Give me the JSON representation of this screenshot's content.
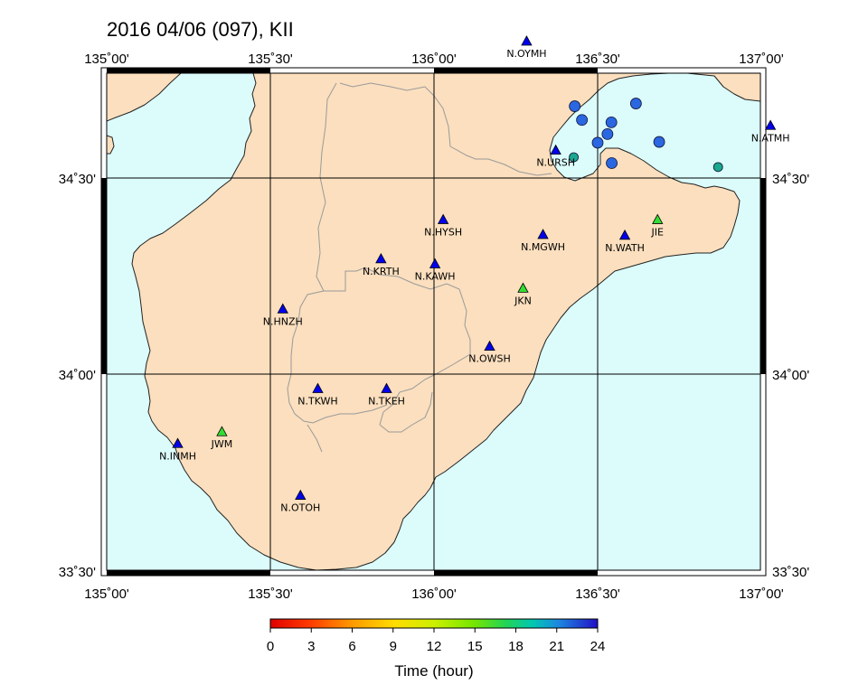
{
  "title": "2016 04/06 (097), KII",
  "colors": {
    "sea": "#dcfcfc",
    "land": "#fbdfbe",
    "coast": "#222222",
    "prefecture_border": "#9a9a9a",
    "hinet_station": "#0000ee",
    "jma_station": "#33dd33",
    "event_early": "#1aa88f",
    "event_late": "#2a67e0"
  },
  "axes": {
    "lon_ticks": [
      "135˚00'",
      "135˚30'",
      "136˚00'",
      "136˚30'",
      "137˚00'"
    ],
    "lat_ticks": [
      "34˚30'",
      "34˚00'",
      "33˚30'"
    ]
  },
  "stations": [
    {
      "name": "N.OYMH",
      "lon": 136.283,
      "lat": 34.848,
      "type": "hinet"
    },
    {
      "name": "N.URSH",
      "lon": 136.372,
      "lat": 34.57,
      "type": "hinet"
    },
    {
      "name": "N.ATMH",
      "lon": 137.028,
      "lat": 34.633,
      "type": "hinet"
    },
    {
      "name": "N.HYSH",
      "lon": 136.028,
      "lat": 34.393,
      "type": "hinet"
    },
    {
      "name": "N.MGWH",
      "lon": 136.333,
      "lat": 34.355,
      "type": "hinet"
    },
    {
      "name": "JIE",
      "lon": 136.683,
      "lat": 34.393,
      "type": "jma"
    },
    {
      "name": "N.WATH",
      "lon": 136.583,
      "lat": 34.353,
      "type": "hinet"
    },
    {
      "name": "N.KRTH",
      "lon": 135.838,
      "lat": 34.293,
      "type": "hinet"
    },
    {
      "name": "N.KAWH",
      "lon": 136.003,
      "lat": 34.28,
      "type": "hinet"
    },
    {
      "name": "JKN",
      "lon": 136.272,
      "lat": 34.218,
      "type": "jma"
    },
    {
      "name": "N.HNZH",
      "lon": 135.538,
      "lat": 34.165,
      "type": "hinet"
    },
    {
      "name": "N.OWSH",
      "lon": 136.17,
      "lat": 34.07,
      "type": "hinet"
    },
    {
      "name": "N.TKWH",
      "lon": 135.645,
      "lat": 33.962,
      "type": "hinet"
    },
    {
      "name": "N.TKEH",
      "lon": 135.855,
      "lat": 33.962,
      "type": "hinet"
    },
    {
      "name": "JWM",
      "lon": 135.352,
      "lat": 33.852,
      "type": "jma"
    },
    {
      "name": "N.INMH",
      "lon": 135.217,
      "lat": 33.822,
      "type": "hinet"
    },
    {
      "name": "N.OTOH",
      "lon": 135.592,
      "lat": 33.69,
      "type": "hinet"
    }
  ],
  "events": [
    {
      "lon": 136.43,
      "lat": 34.683,
      "hour": 22.5
    },
    {
      "lon": 136.452,
      "lat": 34.648,
      "hour": 22.5
    },
    {
      "lon": 136.542,
      "lat": 34.642,
      "hour": 22.5
    },
    {
      "lon": 136.617,
      "lat": 34.69,
      "hour": 22.5
    },
    {
      "lon": 136.53,
      "lat": 34.612,
      "hour": 22.5
    },
    {
      "lon": 136.5,
      "lat": 34.59,
      "hour": 22.5
    },
    {
      "lon": 136.688,
      "lat": 34.592,
      "hour": 22.5
    },
    {
      "lon": 136.543,
      "lat": 34.538,
      "hour": 22.5
    },
    {
      "lon": 136.427,
      "lat": 34.553,
      "hour": 19.5
    },
    {
      "lon": 136.868,
      "lat": 34.528,
      "hour": 19.5
    }
  ],
  "colorbar": {
    "ticks": [
      "0",
      "3",
      "6",
      "9",
      "12",
      "15",
      "18",
      "21",
      "24"
    ],
    "title": "Time (hour)"
  }
}
